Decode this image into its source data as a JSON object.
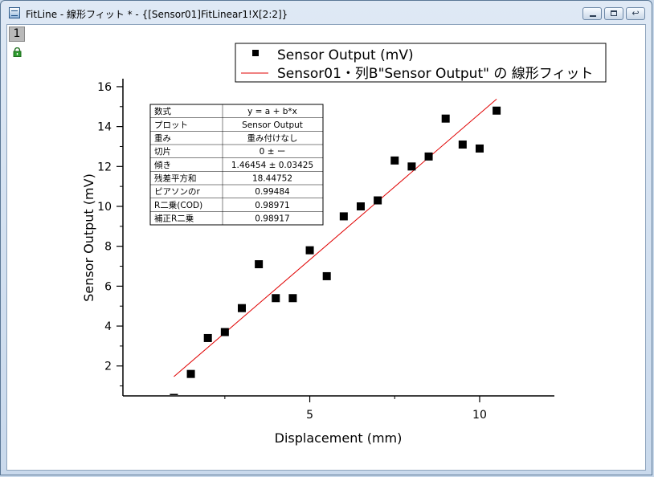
{
  "window": {
    "title": "FitLine - 線形フィット * - {[Sensor01]FitLinear1!X[2:2]}",
    "buttons": {
      "minimize": "minimize",
      "maximize": "maximize",
      "restore": "restore"
    }
  },
  "layer_tab": "1",
  "icons": {
    "app": "graph-window-icon",
    "lock": "lock-icon"
  },
  "colors": {
    "fit_line": "#e00000",
    "points": "#000000",
    "lock": "#2e9b2e"
  },
  "legend": [
    {
      "symbol": "square",
      "label": "Sensor Output (mV)"
    },
    {
      "symbol": "line",
      "label": "Sensor01・列B\"Sensor Output\" の 線形フィット"
    }
  ],
  "stats_table": [
    [
      "数式",
      "y = a + b*x"
    ],
    [
      "プロット",
      "Sensor Output"
    ],
    [
      "重み",
      "重み付けなし"
    ],
    [
      "切片",
      "0 ± ー"
    ],
    [
      "傾き",
      "1.46454 ± 0.03425"
    ],
    [
      "残差平方和",
      "18.44752"
    ],
    [
      "ピアソンのr",
      "0.99484"
    ],
    [
      "R二乗(COD)",
      "0.98971"
    ],
    [
      "補正R二乗",
      "0.98917"
    ]
  ],
  "chart_data": {
    "type": "scatter",
    "xlabel": "Displacement (mm)",
    "ylabel": "Sensor Output (mV)",
    "xlim": [
      -0.5,
      12.2
    ],
    "ylim": [
      0.5,
      16.4
    ],
    "xticks": [
      5,
      10
    ],
    "yticks": [
      2,
      4,
      6,
      8,
      10,
      12,
      14,
      16
    ],
    "grid": false,
    "legend_position": "top-right",
    "series": [
      {
        "name": "Sensor Output (mV)",
        "marker": "square",
        "x": [
          1.0,
          1.5,
          2.0,
          2.5,
          3.0,
          3.5,
          4.0,
          4.5,
          5.0,
          5.5,
          6.0,
          6.5,
          7.0,
          7.5,
          8.0,
          8.5,
          9.0,
          9.5,
          10.0,
          10.5
        ],
        "y": [
          0.4,
          1.6,
          3.4,
          3.7,
          4.9,
          7.1,
          5.4,
          5.4,
          7.8,
          6.5,
          9.5,
          10.0,
          10.3,
          12.3,
          12.0,
          12.5,
          14.4,
          13.1,
          12.9,
          14.8
        ]
      }
    ],
    "fit_line": {
      "name": "Sensor01・列B\"Sensor Output\" の 線形フィット",
      "intercept": 0,
      "slope": 1.46454,
      "x_range": [
        1.0,
        10.5
      ]
    }
  }
}
